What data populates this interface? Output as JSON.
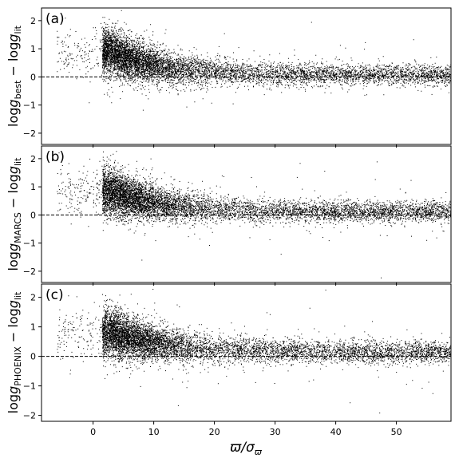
{
  "chart_data": [
    {
      "type": "scatter",
      "panel": "(a)",
      "ylabel_main": "log",
      "ylabel_g": "g",
      "ylabel_sub": "best",
      "ylabel_rest": "− log",
      "ylabel_g2": "g",
      "ylabel_sub2": "lit",
      "xlabel": "",
      "xlim": [
        -8.5,
        59
      ],
      "ylim": [
        -2.4,
        2.45
      ],
      "yticks": [
        -2,
        -1,
        0,
        1,
        2
      ],
      "xticks": [
        0,
        10,
        20,
        30,
        40,
        50
      ],
      "reference_line": {
        "y": 0,
        "style": "dashed"
      },
      "grid": false,
      "trend": {
        "peak_x": 3,
        "peak_y": 0.9,
        "asymptote": 0.1,
        "decay": 8
      },
      "n_points": 8000
    },
    {
      "type": "scatter",
      "panel": "(b)",
      "ylabel_main": "log",
      "ylabel_g": "g",
      "ylabel_sub": "MARCS",
      "ylabel_rest": "− log",
      "ylabel_g2": "g",
      "ylabel_sub2": "lit",
      "xlabel": "",
      "xlim": [
        -8.5,
        59
      ],
      "ylim": [
        -2.4,
        2.45
      ],
      "yticks": [
        -2,
        -1,
        0,
        1,
        2
      ],
      "xticks": [
        0,
        10,
        20,
        30,
        40,
        50
      ],
      "reference_line": {
        "y": 0,
        "style": "dashed"
      },
      "grid": false,
      "trend": {
        "peak_x": 3,
        "peak_y": 0.85,
        "asymptote": 0.12,
        "decay": 9
      },
      "n_points": 8000
    },
    {
      "type": "scatter",
      "panel": "(c)",
      "ylabel_main": "log",
      "ylabel_g": "g",
      "ylabel_sub": "PHOENIX",
      "ylabel_rest": "− log",
      "ylabel_g2": "g",
      "ylabel_sub2": "lit",
      "xlabel_main": "ϖ/σ",
      "xlabel_sub": "ϖ",
      "xlim": [
        -8.5,
        59
      ],
      "ylim": [
        -2.2,
        2.45
      ],
      "yticks": [
        -2,
        -1,
        0,
        1,
        2
      ],
      "xticks": [
        0,
        10,
        20,
        30,
        40,
        50
      ],
      "reference_line": {
        "y": 0,
        "style": "dashed"
      },
      "grid": false,
      "trend": {
        "peak_x": 3,
        "peak_y": 0.8,
        "asymptote": 0.15,
        "decay": 10
      },
      "n_points": 8000
    }
  ]
}
